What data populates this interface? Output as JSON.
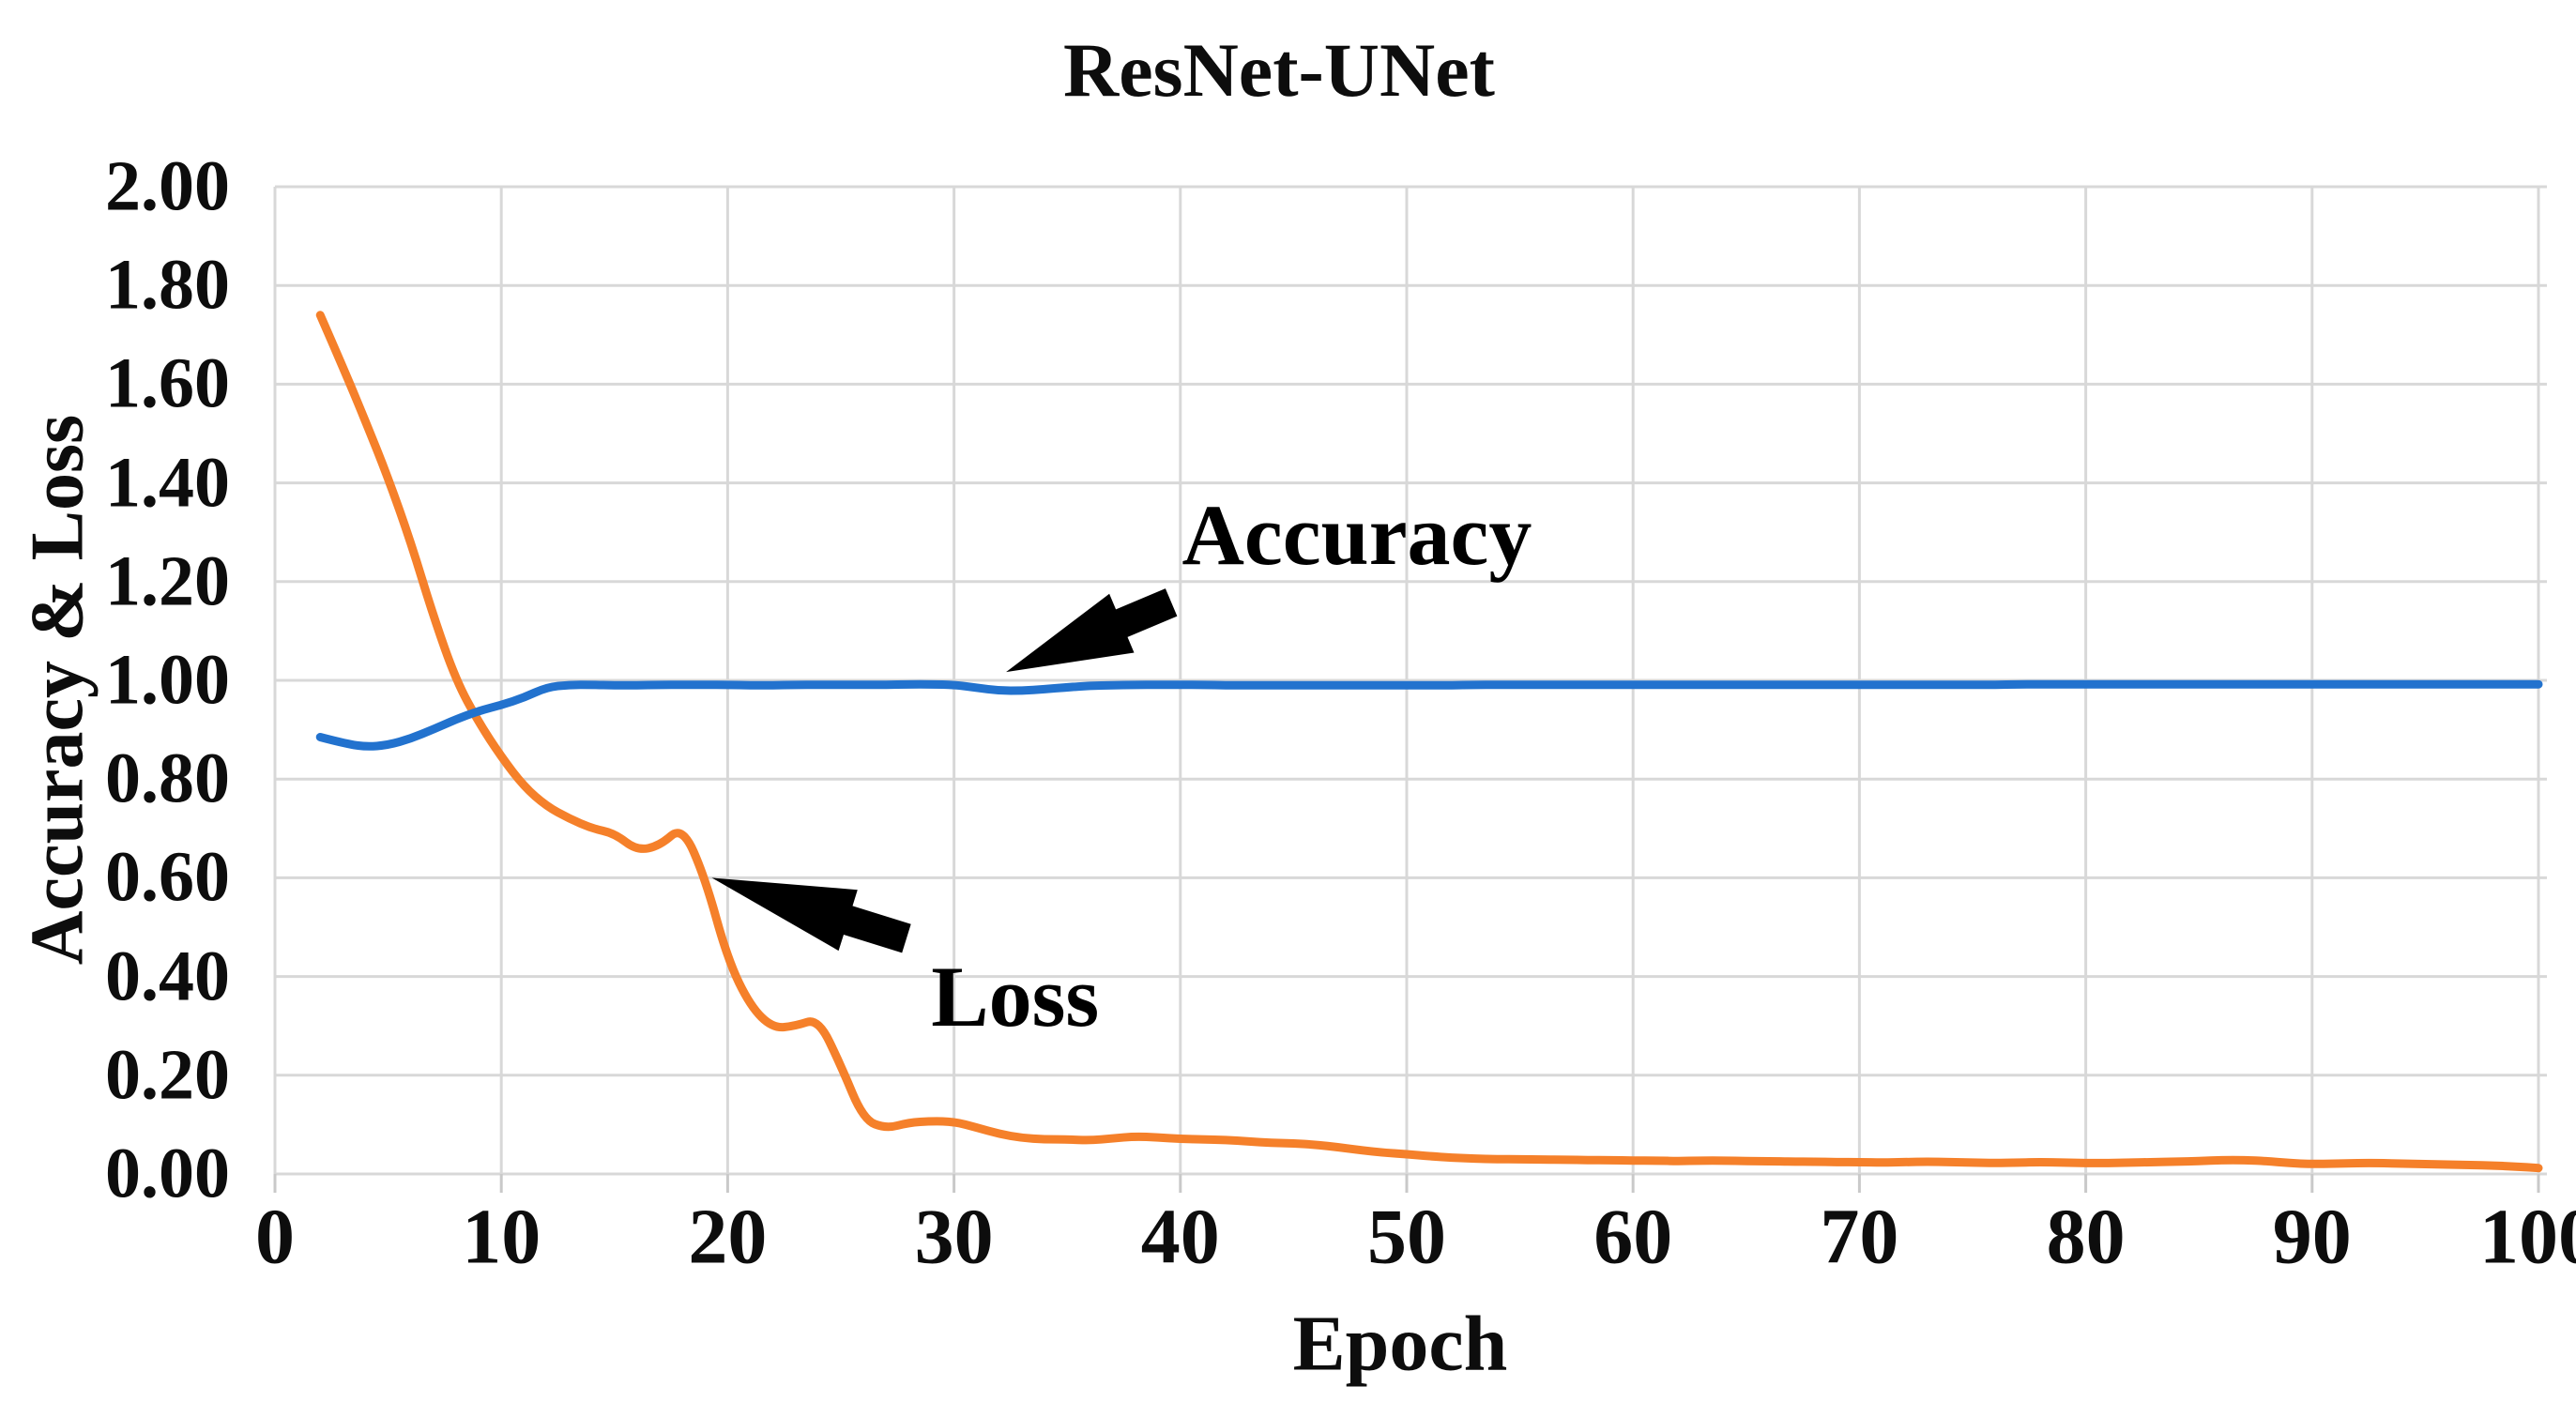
{
  "title": "ResNet-UNet",
  "y_axis": {
    "label": "Accuracy & Loss",
    "tick_labels": [
      "2.00",
      "1.80",
      "1.60",
      "1.40",
      "1.20",
      "1.00",
      "0.80",
      "0.60",
      "0.40",
      "0.20",
      "0.00"
    ]
  },
  "x_axis": {
    "label": "Epoch",
    "tick_labels": [
      "0",
      "10",
      "20",
      "30",
      "40",
      "50",
      "60",
      "70",
      "80",
      "90",
      "100"
    ]
  },
  "annotations": [
    {
      "text": "Accuracy",
      "label_epoch": 47.8,
      "label_value": 1.295,
      "arrow_tip_epoch": 32.3,
      "arrow_tip_value": 1.017,
      "arrow_tail_epoch": 39.6,
      "arrow_tail_value": 1.158
    },
    {
      "text": "Loss",
      "label_epoch": 32.7,
      "label_value": 0.36,
      "arrow_tip_epoch": 19.3,
      "arrow_tip_value": 0.6,
      "arrow_tail_epoch": 27.9,
      "arrow_tail_value": 0.477
    }
  ],
  "colors": {
    "accuracy_line": "#2272CE",
    "loss_line": "#F5802A",
    "gridline": "#D8D8D8",
    "tick_mark": "#C9C9C9",
    "text": "#0d0d0d",
    "annotation_arrow": "#000000"
  },
  "chart_data": {
    "type": "line",
    "title": "ResNet-UNet",
    "xlabel": "Epoch",
    "ylabel": "Accuracy & Loss",
    "xlim": [
      0,
      100
    ],
    "ylim": [
      0.0,
      2.0
    ],
    "x_tick_step": 10,
    "y_tick_step": 0.2,
    "grid": true,
    "legend": "none (inline text annotations with arrows)",
    "x_start": 2,
    "x_step": 1,
    "series": [
      {
        "name": "Accuracy",
        "values": [
          0.885,
          0.873,
          0.865,
          0.869,
          0.882,
          0.901,
          0.921,
          0.938,
          0.95,
          0.965,
          0.986,
          0.991,
          0.991,
          0.99,
          0.99,
          0.991,
          0.991,
          0.991,
          0.991,
          0.99,
          0.99,
          0.991,
          0.991,
          0.991,
          0.991,
          0.991,
          0.992,
          0.992,
          0.991,
          0.985,
          0.979,
          0.979,
          0.982,
          0.986,
          0.989,
          0.99,
          0.991,
          0.991,
          0.991,
          0.991,
          0.99,
          0.99,
          0.99,
          0.99,
          0.99,
          0.99,
          0.99,
          0.99,
          0.99,
          0.99,
          0.99,
          0.991,
          0.991,
          0.991,
          0.991,
          0.991,
          0.991,
          0.991,
          0.991,
          0.991,
          0.991,
          0.991,
          0.991,
          0.991,
          0.991,
          0.991,
          0.991,
          0.991,
          0.991,
          0.991,
          0.991,
          0.991,
          0.991,
          0.991,
          0.991,
          0.992,
          0.992,
          0.992,
          0.992,
          0.992,
          0.992,
          0.992,
          0.992,
          0.992,
          0.992,
          0.992,
          0.992,
          0.992,
          0.992,
          0.992,
          0.992,
          0.992,
          0.992,
          0.992,
          0.992,
          0.992,
          0.992,
          0.992,
          0.992
        ]
      },
      {
        "name": "Loss",
        "values": [
          1.74,
          1.635,
          1.525,
          1.41,
          1.28,
          1.13,
          1.0,
          0.915,
          0.845,
          0.785,
          0.745,
          0.72,
          0.7,
          0.69,
          0.655,
          0.665,
          0.705,
          0.6,
          0.435,
          0.34,
          0.295,
          0.3,
          0.315,
          0.22,
          0.11,
          0.092,
          0.104,
          0.107,
          0.106,
          0.094,
          0.081,
          0.073,
          0.07,
          0.07,
          0.068,
          0.072,
          0.076,
          0.074,
          0.071,
          0.07,
          0.069,
          0.066,
          0.063,
          0.062,
          0.059,
          0.054,
          0.048,
          0.043,
          0.04,
          0.036,
          0.033,
          0.031,
          0.03,
          0.03,
          0.029,
          0.029,
          0.028,
          0.028,
          0.027,
          0.027,
          0.026,
          0.027,
          0.027,
          0.026,
          0.026,
          0.025,
          0.025,
          0.024,
          0.024,
          0.023,
          0.024,
          0.025,
          0.024,
          0.023,
          0.022,
          0.023,
          0.024,
          0.023,
          0.022,
          0.022,
          0.023,
          0.024,
          0.025,
          0.026,
          0.028,
          0.028,
          0.026,
          0.022,
          0.02,
          0.021,
          0.022,
          0.022,
          0.021,
          0.02,
          0.019,
          0.018,
          0.017,
          0.015,
          0.012
        ]
      }
    ]
  }
}
